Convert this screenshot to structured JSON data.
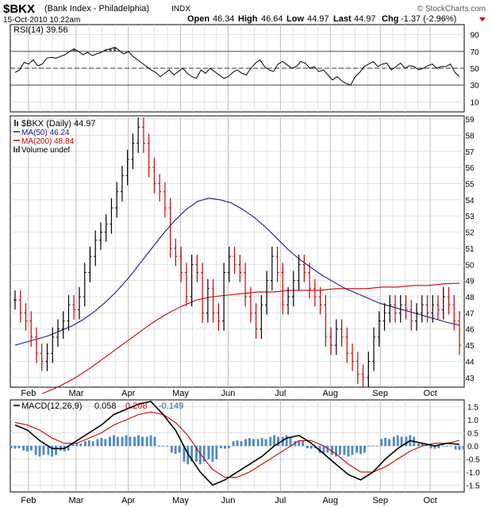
{
  "header": {
    "symbol": "$BKX",
    "name": "(Bank Index - Philadelphia)",
    "exchange": "INDX",
    "date": "15-Oct-2010 10:22am",
    "open_label": "Open",
    "open": "46.34",
    "high_label": "High",
    "high": "46.64",
    "low_label": "Low",
    "low": "44.97",
    "last_label": "Last",
    "last": "44.97",
    "chg_label": "Chg",
    "chg": "-1.37 (-2.96%)",
    "watermark": "© StockCharts.com"
  },
  "colors": {
    "price": "#000000",
    "down": "#cc0000",
    "ma50": "#1a1a8c",
    "ma200": "#cc0000",
    "rsi_fill": "#3a6b3a",
    "hist": "#4a8fcf",
    "grid": "#d8d8d8",
    "frame": "#000000"
  },
  "chart_data": [
    {
      "type": "line",
      "panel": "rsi",
      "legend": "RSI(14) 39.56",
      "ylim": [
        0,
        100
      ],
      "yticks": [
        10,
        30,
        50,
        70,
        90
      ],
      "levels": [
        30,
        50,
        70
      ],
      "series": [
        {
          "name": "RSI(14)",
          "values": [
            45,
            48,
            57,
            55,
            60,
            53,
            55,
            62,
            63,
            62,
            64,
            66,
            70,
            73,
            70,
            66,
            69,
            65,
            67,
            69,
            72,
            73,
            75,
            71,
            67,
            70,
            64,
            60,
            56,
            52,
            48,
            45,
            40,
            44,
            48,
            42,
            46,
            50,
            44,
            40,
            38,
            48,
            44,
            50,
            46,
            42,
            38,
            40,
            45,
            48,
            44,
            42,
            50,
            56,
            60,
            52,
            48,
            46,
            55,
            58,
            54,
            50,
            52,
            58,
            56,
            50,
            52,
            46,
            48,
            42,
            36,
            40,
            35,
            32,
            30,
            40,
            45,
            52,
            55,
            58,
            52,
            55,
            56,
            48,
            52,
            56,
            50,
            53,
            52,
            48,
            50,
            53,
            55,
            50,
            52,
            52,
            55,
            45,
            40
          ]
        }
      ]
    },
    {
      "type": "line",
      "panel": "price",
      "legend": [
        "$BKX (Daily) 44.97",
        "MA(50) 46.24",
        "MA(200) 48.84",
        "Volume undef"
      ],
      "xlabels": [
        "Feb",
        "Mar",
        "Apr",
        "May",
        "Jun",
        "Jul",
        "Aug",
        "Sep",
        "Oct"
      ],
      "ylim": [
        42.5,
        59.1
      ],
      "yticks": [
        43,
        44,
        45,
        46,
        47,
        48,
        49,
        50,
        51,
        52,
        53,
        54,
        55,
        56,
        57,
        58,
        59
      ],
      "series": [
        {
          "name": "$BKX (Daily)",
          "values": [
            47.8,
            47.0,
            46.5,
            45.5,
            44.5,
            44.0,
            44.5,
            45.5,
            46.0,
            46.5,
            47.5,
            47.2,
            48.0,
            49.5,
            50.5,
            51.5,
            52.0,
            52.5,
            53.5,
            54.5,
            55.5,
            56.5,
            57.5,
            58.5,
            57.5,
            56.0,
            55.0,
            54.5,
            53.5,
            51.0,
            50.5,
            49.5,
            48.0,
            50.0,
            49.5,
            47.0,
            48.5,
            47.0,
            46.5,
            49.5,
            50.5,
            50.0,
            49.5,
            48.0,
            47.0,
            46.0,
            47.5,
            49.0,
            50.5,
            49.5,
            47.5,
            48.0,
            49.0,
            50.0,
            49.5,
            48.5,
            48.0,
            47.5,
            45.5,
            45.0,
            46.0,
            45.5,
            44.5,
            44.0,
            43.2,
            43.0,
            44.0,
            45.5,
            46.5,
            47.0,
            47.5,
            47.0,
            47.5,
            47.2,
            46.5,
            47.0,
            47.5,
            47.0,
            47.5,
            47.2,
            48.0,
            47.5,
            46.5,
            45.0
          ]
        },
        {
          "name": "MA(50)",
          "values": [
            45.0,
            45.2,
            45.4,
            45.6,
            45.9,
            46.2,
            46.6,
            47.1,
            47.7,
            48.4,
            49.2,
            50.1,
            51.0,
            51.9,
            52.7,
            53.4,
            53.9,
            54.1,
            54.0,
            53.8,
            53.4,
            52.9,
            52.3,
            51.6,
            50.9,
            50.3,
            49.8,
            49.3,
            48.9,
            48.5,
            48.2,
            47.9,
            47.6,
            47.4,
            47.2,
            47.0,
            46.8,
            46.6,
            46.4,
            46.24
          ]
        },
        {
          "name": "MA(200)",
          "values": [
            42.0,
            42.4,
            42.9,
            43.5,
            44.2,
            44.9,
            45.6,
            46.3,
            46.9,
            47.4,
            47.8,
            48.0,
            48.1,
            48.2,
            48.3,
            48.3,
            48.4,
            48.4,
            48.4,
            48.5,
            48.5,
            48.5,
            48.6,
            48.6,
            48.7,
            48.7,
            48.8,
            48.84
          ]
        }
      ]
    },
    {
      "type": "line",
      "panel": "macd",
      "legend": [
        "MACD(12,26,9)",
        "0.058",
        "0.208",
        "-0.149"
      ],
      "xlabels": [
        "Feb",
        "Mar",
        "Apr",
        "May",
        "Jun",
        "Jul",
        "Aug",
        "Sep",
        "Oct"
      ],
      "ylim": [
        -1.7,
        1.7
      ],
      "yticks": [
        -1.5,
        -1.0,
        -0.5,
        0.0,
        0.5,
        1.0,
        1.5
      ],
      "series": [
        {
          "name": "MACD(12,26,9)",
          "values": [
            0.8,
            0.6,
            0.2,
            -0.1,
            -0.1,
            0.2,
            0.5,
            0.8,
            1.2,
            1.4,
            1.6,
            1.7,
            1.2,
            0.6,
            -0.3,
            -1.0,
            -1.5,
            -1.3,
            -1.0,
            -0.7,
            -0.4,
            0.0,
            0.3,
            0.4,
            0.1,
            -0.3,
            -0.7,
            -1.1,
            -1.3,
            -1.0,
            -0.5,
            -0.1,
            0.2,
            0.1,
            0.0,
            0.1,
            0.06
          ]
        },
        {
          "name": "Signal",
          "values": [
            0.9,
            0.8,
            0.6,
            0.3,
            0.1,
            0.1,
            0.3,
            0.5,
            0.8,
            1.0,
            1.2,
            1.3,
            1.2,
            0.9,
            0.4,
            -0.3,
            -0.9,
            -1.2,
            -1.2,
            -1.0,
            -0.7,
            -0.4,
            -0.1,
            0.2,
            0.2,
            0.0,
            -0.3,
            -0.7,
            -1.0,
            -1.0,
            -0.8,
            -0.5,
            -0.2,
            0.0,
            0.1,
            0.1,
            0.21
          ]
        },
        {
          "name": "Histogram",
          "values": [
            -0.1,
            -0.2,
            -0.4,
            -0.4,
            -0.2,
            0.1,
            0.2,
            0.3,
            0.4,
            0.4,
            0.4,
            0.4,
            0.0,
            -0.3,
            -0.7,
            -0.7,
            -0.6,
            -0.1,
            0.2,
            0.3,
            0.3,
            0.4,
            0.4,
            0.2,
            -0.1,
            -0.3,
            -0.4,
            -0.4,
            -0.3,
            0.0,
            0.3,
            0.4,
            0.4,
            0.1,
            -0.1,
            0.0,
            -0.15
          ]
        }
      ]
    }
  ]
}
